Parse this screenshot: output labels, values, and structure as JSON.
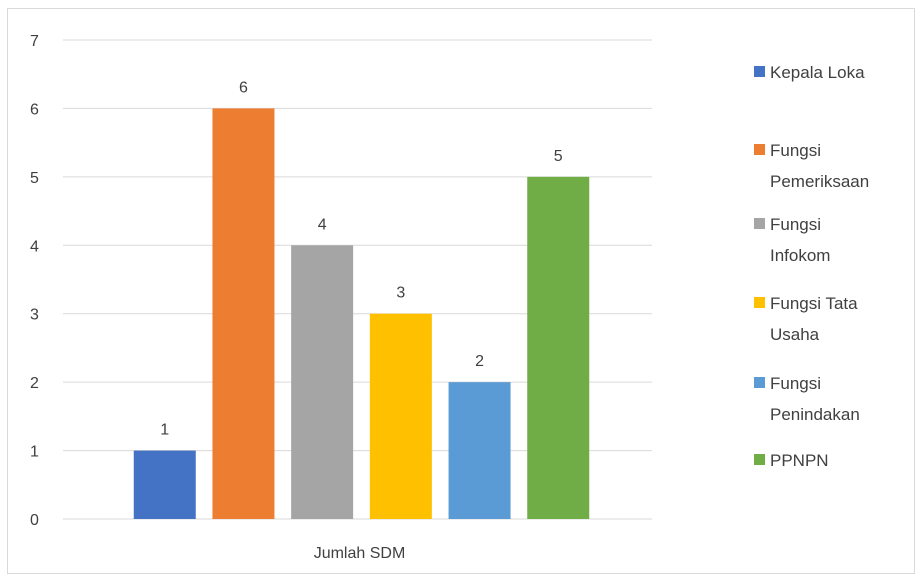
{
  "chart_data": {
    "type": "bar",
    "categories": [
      "Jumlah SDM"
    ],
    "xlabel": "",
    "ylabel": "",
    "ylim": [
      0,
      7
    ],
    "yticks": [
      0,
      1,
      2,
      3,
      4,
      5,
      6,
      7
    ],
    "grid": true,
    "legend_position": "right",
    "data_labels": true,
    "series": [
      {
        "name": "Kepala Loka",
        "legend_lines": [
          "Kepala Loka"
        ],
        "values": [
          1
        ],
        "color": "#4472C4"
      },
      {
        "name": "Fungsi Pemeriksaan",
        "legend_lines": [
          "Fungsi",
          "Pemeriksaan"
        ],
        "values": [
          6
        ],
        "color": "#ED7D31"
      },
      {
        "name": "Fungsi Infokom",
        "legend_lines": [
          "Fungsi",
          "Infokom"
        ],
        "values": [
          4
        ],
        "color": "#A5A5A5"
      },
      {
        "name": "Fungsi Tata Usaha",
        "legend_lines": [
          "Fungsi Tata",
          "Usaha"
        ],
        "values": [
          3
        ],
        "color": "#FFC000"
      },
      {
        "name": "Fungsi Penindakan",
        "legend_lines": [
          "Fungsi",
          "Penindakan"
        ],
        "values": [
          2
        ],
        "color": "#5B9BD5"
      },
      {
        "name": "PPNPN",
        "legend_lines": [
          "PPNPN"
        ],
        "values": [
          5
        ],
        "color": "#70AD47"
      }
    ]
  }
}
